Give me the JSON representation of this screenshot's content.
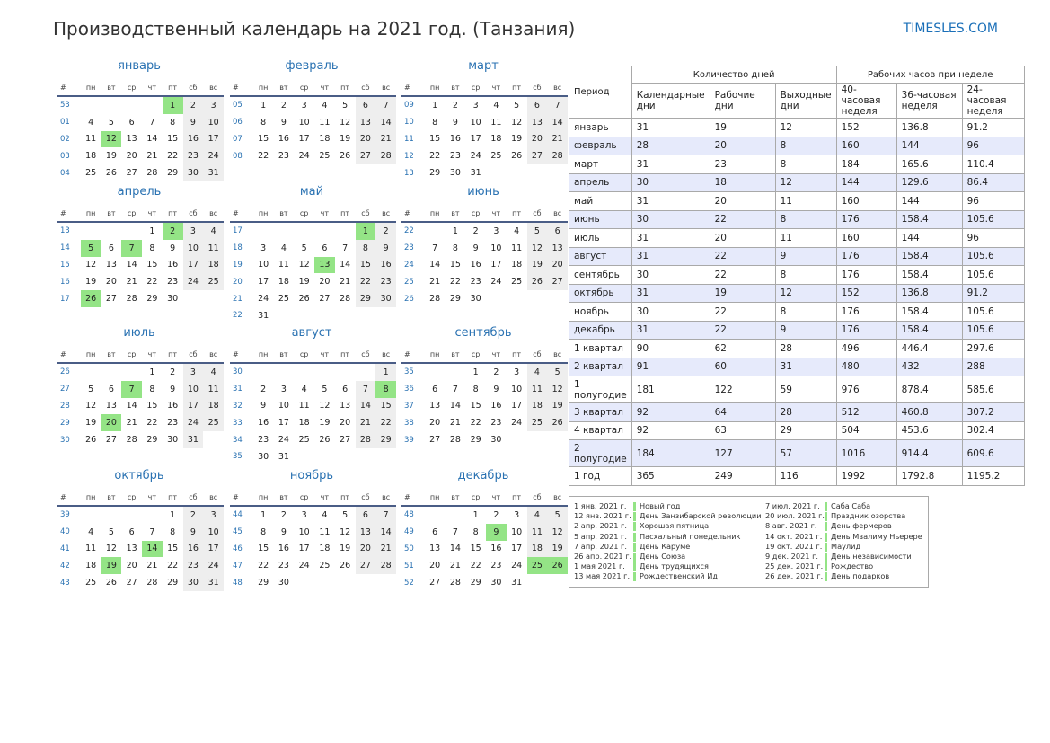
{
  "page_title": "Производственный календарь на 2021 год. (Танзания)",
  "site_name": "TIMESLES.COM",
  "colors": {
    "accent": "#2a72b2",
    "holiday": "#94e486",
    "weekend": "#eeeeee",
    "quarter_row": "#e6eafb"
  },
  "weekday_headers": [
    "#",
    "пн",
    "вт",
    "ср",
    "чт",
    "пт",
    "сб",
    "вс"
  ],
  "months": [
    {
      "name": "январь",
      "weeks": [
        {
          "w": "53",
          "d": [
            "",
            "",
            "",
            "",
            "1",
            "2",
            "3"
          ]
        },
        {
          "w": "01",
          "d": [
            "4",
            "5",
            "6",
            "7",
            "8",
            "9",
            "10"
          ]
        },
        {
          "w": "02",
          "d": [
            "11",
            "12",
            "13",
            "14",
            "15",
            "16",
            "17"
          ]
        },
        {
          "w": "03",
          "d": [
            "18",
            "19",
            "20",
            "21",
            "22",
            "23",
            "24"
          ]
        },
        {
          "w": "04",
          "d": [
            "25",
            "26",
            "27",
            "28",
            "29",
            "30",
            "31"
          ]
        }
      ],
      "holidays": [
        "1",
        "12"
      ]
    },
    {
      "name": "февраль",
      "weeks": [
        {
          "w": "05",
          "d": [
            "1",
            "2",
            "3",
            "4",
            "5",
            "6",
            "7"
          ]
        },
        {
          "w": "06",
          "d": [
            "8",
            "9",
            "10",
            "11",
            "12",
            "13",
            "14"
          ]
        },
        {
          "w": "07",
          "d": [
            "15",
            "16",
            "17",
            "18",
            "19",
            "20",
            "21"
          ]
        },
        {
          "w": "08",
          "d": [
            "22",
            "23",
            "24",
            "25",
            "26",
            "27",
            "28"
          ]
        }
      ],
      "holidays": []
    },
    {
      "name": "март",
      "weeks": [
        {
          "w": "09",
          "d": [
            "1",
            "2",
            "3",
            "4",
            "5",
            "6",
            "7"
          ]
        },
        {
          "w": "10",
          "d": [
            "8",
            "9",
            "10",
            "11",
            "12",
            "13",
            "14"
          ]
        },
        {
          "w": "11",
          "d": [
            "15",
            "16",
            "17",
            "18",
            "19",
            "20",
            "21"
          ]
        },
        {
          "w": "12",
          "d": [
            "22",
            "23",
            "24",
            "25",
            "26",
            "27",
            "28"
          ]
        },
        {
          "w": "13",
          "d": [
            "29",
            "30",
            "31",
            "",
            "",
            "",
            ""
          ]
        }
      ],
      "holidays": []
    },
    {
      "name": "апрель",
      "weeks": [
        {
          "w": "13",
          "d": [
            "",
            "",
            "",
            "1",
            "2",
            "3",
            "4"
          ]
        },
        {
          "w": "14",
          "d": [
            "5",
            "6",
            "7",
            "8",
            "9",
            "10",
            "11"
          ]
        },
        {
          "w": "15",
          "d": [
            "12",
            "13",
            "14",
            "15",
            "16",
            "17",
            "18"
          ]
        },
        {
          "w": "16",
          "d": [
            "19",
            "20",
            "21",
            "22",
            "23",
            "24",
            "25"
          ]
        },
        {
          "w": "17",
          "d": [
            "26",
            "27",
            "28",
            "29",
            "30",
            "",
            ""
          ]
        }
      ],
      "holidays": [
        "2",
        "5",
        "7",
        "26"
      ]
    },
    {
      "name": "май",
      "weeks": [
        {
          "w": "17",
          "d": [
            "",
            "",
            "",
            "",
            "",
            "1",
            "2"
          ]
        },
        {
          "w": "18",
          "d": [
            "3",
            "4",
            "5",
            "6",
            "7",
            "8",
            "9"
          ]
        },
        {
          "w": "19",
          "d": [
            "10",
            "11",
            "12",
            "13",
            "14",
            "15",
            "16"
          ]
        },
        {
          "w": "20",
          "d": [
            "17",
            "18",
            "19",
            "20",
            "21",
            "22",
            "23"
          ]
        },
        {
          "w": "21",
          "d": [
            "24",
            "25",
            "26",
            "27",
            "28",
            "29",
            "30"
          ]
        },
        {
          "w": "22",
          "d": [
            "31",
            "",
            "",
            "",
            "",
            "",
            ""
          ]
        }
      ],
      "holidays": [
        "1",
        "13"
      ]
    },
    {
      "name": "июнь",
      "weeks": [
        {
          "w": "22",
          "d": [
            "",
            "1",
            "2",
            "3",
            "4",
            "5",
            "6"
          ]
        },
        {
          "w": "23",
          "d": [
            "7",
            "8",
            "9",
            "10",
            "11",
            "12",
            "13"
          ]
        },
        {
          "w": "24",
          "d": [
            "14",
            "15",
            "16",
            "17",
            "18",
            "19",
            "20"
          ]
        },
        {
          "w": "25",
          "d": [
            "21",
            "22",
            "23",
            "24",
            "25",
            "26",
            "27"
          ]
        },
        {
          "w": "26",
          "d": [
            "28",
            "29",
            "30",
            "",
            "",
            "",
            ""
          ]
        }
      ],
      "holidays": []
    },
    {
      "name": "июль",
      "weeks": [
        {
          "w": "26",
          "d": [
            "",
            "",
            "",
            "1",
            "2",
            "3",
            "4"
          ]
        },
        {
          "w": "27",
          "d": [
            "5",
            "6",
            "7",
            "8",
            "9",
            "10",
            "11"
          ]
        },
        {
          "w": "28",
          "d": [
            "12",
            "13",
            "14",
            "15",
            "16",
            "17",
            "18"
          ]
        },
        {
          "w": "29",
          "d": [
            "19",
            "20",
            "21",
            "22",
            "23",
            "24",
            "25"
          ]
        },
        {
          "w": "30",
          "d": [
            "26",
            "27",
            "28",
            "29",
            "30",
            "31",
            ""
          ]
        }
      ],
      "holidays": [
        "7",
        "20"
      ]
    },
    {
      "name": "август",
      "weeks": [
        {
          "w": "30",
          "d": [
            "",
            "",
            "",
            "",
            "",
            "",
            "1"
          ]
        },
        {
          "w": "31",
          "d": [
            "2",
            "3",
            "4",
            "5",
            "6",
            "7",
            "8"
          ]
        },
        {
          "w": "32",
          "d": [
            "9",
            "10",
            "11",
            "12",
            "13",
            "14",
            "15"
          ]
        },
        {
          "w": "33",
          "d": [
            "16",
            "17",
            "18",
            "19",
            "20",
            "21",
            "22"
          ]
        },
        {
          "w": "34",
          "d": [
            "23",
            "24",
            "25",
            "26",
            "27",
            "28",
            "29"
          ]
        },
        {
          "w": "35",
          "d": [
            "30",
            "31",
            "",
            "",
            "",
            "",
            ""
          ]
        }
      ],
      "holidays": [
        "8"
      ]
    },
    {
      "name": "сентябрь",
      "weeks": [
        {
          "w": "35",
          "d": [
            "",
            "",
            "1",
            "2",
            "3",
            "4",
            "5"
          ]
        },
        {
          "w": "36",
          "d": [
            "6",
            "7",
            "8",
            "9",
            "10",
            "11",
            "12"
          ]
        },
        {
          "w": "37",
          "d": [
            "13",
            "14",
            "15",
            "16",
            "17",
            "18",
            "19"
          ]
        },
        {
          "w": "38",
          "d": [
            "20",
            "21",
            "22",
            "23",
            "24",
            "25",
            "26"
          ]
        },
        {
          "w": "39",
          "d": [
            "27",
            "28",
            "29",
            "30",
            "",
            "",
            ""
          ]
        }
      ],
      "holidays": []
    },
    {
      "name": "октябрь",
      "weeks": [
        {
          "w": "39",
          "d": [
            "",
            "",
            "",
            "",
            "1",
            "2",
            "3"
          ]
        },
        {
          "w": "40",
          "d": [
            "4",
            "5",
            "6",
            "7",
            "8",
            "9",
            "10"
          ]
        },
        {
          "w": "41",
          "d": [
            "11",
            "12",
            "13",
            "14",
            "15",
            "16",
            "17"
          ]
        },
        {
          "w": "42",
          "d": [
            "18",
            "19",
            "20",
            "21",
            "22",
            "23",
            "24"
          ]
        },
        {
          "w": "43",
          "d": [
            "25",
            "26",
            "27",
            "28",
            "29",
            "30",
            "31"
          ]
        }
      ],
      "holidays": [
        "14",
        "19"
      ]
    },
    {
      "name": "ноябрь",
      "weeks": [
        {
          "w": "44",
          "d": [
            "1",
            "2",
            "3",
            "4",
            "5",
            "6",
            "7"
          ]
        },
        {
          "w": "45",
          "d": [
            "8",
            "9",
            "10",
            "11",
            "12",
            "13",
            "14"
          ]
        },
        {
          "w": "46",
          "d": [
            "15",
            "16",
            "17",
            "18",
            "19",
            "20",
            "21"
          ]
        },
        {
          "w": "47",
          "d": [
            "22",
            "23",
            "24",
            "25",
            "26",
            "27",
            "28"
          ]
        },
        {
          "w": "48",
          "d": [
            "29",
            "30",
            "",
            "",
            "",
            "",
            ""
          ]
        }
      ],
      "holidays": []
    },
    {
      "name": "декабрь",
      "weeks": [
        {
          "w": "48",
          "d": [
            "",
            "",
            "1",
            "2",
            "3",
            "4",
            "5"
          ]
        },
        {
          "w": "49",
          "d": [
            "6",
            "7",
            "8",
            "9",
            "10",
            "11",
            "12"
          ]
        },
        {
          "w": "50",
          "d": [
            "13",
            "14",
            "15",
            "16",
            "17",
            "18",
            "19"
          ]
        },
        {
          "w": "51",
          "d": [
            "20",
            "21",
            "22",
            "23",
            "24",
            "25",
            "26"
          ]
        },
        {
          "w": "52",
          "d": [
            "27",
            "28",
            "29",
            "30",
            "31",
            "",
            ""
          ]
        }
      ],
      "holidays": [
        "9",
        "25",
        "26"
      ]
    }
  ],
  "summary": {
    "period_label": "Период",
    "days_group": "Количество дней",
    "hours_group": "Рабочих часов при неделе",
    "columns": [
      "Календарные дни",
      "Рабочие дни",
      "Выходные дни",
      "40-часовая неделя",
      "36-часовая неделя",
      "24-часовая неделя"
    ],
    "rows": [
      {
        "p": "январь",
        "v": [
          "31",
          "19",
          "12",
          "152",
          "136.8",
          "91.2"
        ]
      },
      {
        "p": "февраль",
        "v": [
          "28",
          "20",
          "8",
          "160",
          "144",
          "96"
        ]
      },
      {
        "p": "март",
        "v": [
          "31",
          "23",
          "8",
          "184",
          "165.6",
          "110.4"
        ]
      },
      {
        "p": "апрель",
        "v": [
          "30",
          "18",
          "12",
          "144",
          "129.6",
          "86.4"
        ]
      },
      {
        "p": "май",
        "v": [
          "31",
          "20",
          "11",
          "160",
          "144",
          "96"
        ]
      },
      {
        "p": "июнь",
        "v": [
          "30",
          "22",
          "8",
          "176",
          "158.4",
          "105.6"
        ]
      },
      {
        "p": "июль",
        "v": [
          "31",
          "20",
          "11",
          "160",
          "144",
          "96"
        ]
      },
      {
        "p": "август",
        "v": [
          "31",
          "22",
          "9",
          "176",
          "158.4",
          "105.6"
        ]
      },
      {
        "p": "сентябрь",
        "v": [
          "30",
          "22",
          "8",
          "176",
          "158.4",
          "105.6"
        ]
      },
      {
        "p": "октябрь",
        "v": [
          "31",
          "19",
          "12",
          "152",
          "136.8",
          "91.2"
        ]
      },
      {
        "p": "ноябрь",
        "v": [
          "30",
          "22",
          "8",
          "176",
          "158.4",
          "105.6"
        ]
      },
      {
        "p": "декабрь",
        "v": [
          "31",
          "22",
          "9",
          "176",
          "158.4",
          "105.6"
        ]
      },
      {
        "p": "1 квартал",
        "v": [
          "90",
          "62",
          "28",
          "496",
          "446.4",
          "297.6"
        ]
      },
      {
        "p": "2 квартал",
        "v": [
          "91",
          "60",
          "31",
          "480",
          "432",
          "288"
        ]
      },
      {
        "p": "1 полугодие",
        "v": [
          "181",
          "122",
          "59",
          "976",
          "878.4",
          "585.6"
        ]
      },
      {
        "p": "3 квартал",
        "v": [
          "92",
          "64",
          "28",
          "512",
          "460.8",
          "307.2"
        ]
      },
      {
        "p": "4 квартал",
        "v": [
          "92",
          "63",
          "29",
          "504",
          "453.6",
          "302.4"
        ]
      },
      {
        "p": "2 полугодие",
        "v": [
          "184",
          "127",
          "57",
          "1016",
          "914.4",
          "609.6"
        ]
      },
      {
        "p": "1 год",
        "v": [
          "365",
          "249",
          "116",
          "1992",
          "1792.8",
          "1195.2"
        ]
      }
    ]
  },
  "holidays_list": [
    {
      "date": "1 янв. 2021 г.",
      "name": "Новый год"
    },
    {
      "date": "12 янв. 2021 г.",
      "name": "День Занзибарской революции"
    },
    {
      "date": "2 апр. 2021 г.",
      "name": "Хорошая пятница"
    },
    {
      "date": "5 апр. 2021 г.",
      "name": "Пасхальный понедельник"
    },
    {
      "date": "7 апр. 2021 г.",
      "name": "День Каруме"
    },
    {
      "date": "26 апр. 2021 г.",
      "name": "День Союза"
    },
    {
      "date": "1 мая 2021 г.",
      "name": "День трудящихся"
    },
    {
      "date": "13 мая 2021 г.",
      "name": "Рождественский Ид"
    },
    {
      "date": "7 июл. 2021 г.",
      "name": "Саба Саба"
    },
    {
      "date": "20 июл. 2021 г.",
      "name": "Праздник озорства"
    },
    {
      "date": "8 авг. 2021 г.",
      "name": "День фермеров"
    },
    {
      "date": "14 окт. 2021 г.",
      "name": "День Мвалиму Ньерере"
    },
    {
      "date": "19 окт. 2021 г.",
      "name": "Маулид"
    },
    {
      "date": "9 дек. 2021 г.",
      "name": "День независимости"
    },
    {
      "date": "25 дек. 2021 г.",
      "name": "Рождество"
    },
    {
      "date": "26 дек. 2021 г.",
      "name": "День подарков"
    }
  ]
}
